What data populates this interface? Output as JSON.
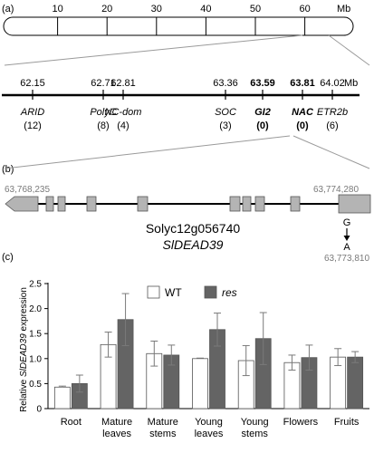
{
  "panels": {
    "a": {
      "label": "(a)"
    },
    "b": {
      "label": "(b)"
    },
    "c": {
      "label": "(c)"
    }
  },
  "chromosome": {
    "ticks": [
      "10",
      "20",
      "30",
      "40",
      "50",
      "60"
    ],
    "unit": "Mb"
  },
  "markers": {
    "unit": "Mb",
    "items": [
      {
        "pos": "62.15",
        "gene": "ARID",
        "count": "(12)",
        "bold": false
      },
      {
        "pos": "62.71",
        "gene": "PolyC",
        "count": "(8)",
        "bold": false
      },
      {
        "pos": "62.81",
        "gene": "NC-dom",
        "count": "(4)",
        "bold": false
      },
      {
        "pos": "63.36",
        "gene": "SOC",
        "count": "(3)",
        "bold": false
      },
      {
        "pos": "63.59",
        "gene": "GI2",
        "count": "(0)",
        "bold": true
      },
      {
        "pos": "63.81",
        "gene": "NAC",
        "count": "(0)",
        "bold": true
      },
      {
        "pos": "64.02",
        "gene": "ETR2b",
        "count": "(6)",
        "bold": false
      }
    ]
  },
  "gene_model": {
    "start": "63,768,235",
    "end": "63,774,280",
    "gene_id": "Solyc12g056740",
    "gene_name": "SlDEAD39",
    "snp_ref": "G",
    "snp_alt": "A",
    "snp_pos": "63,773,810"
  },
  "colors": {
    "wt": "#ffffff",
    "res": "#646464",
    "exon": "#b4b4b4",
    "line": "#000000",
    "muted": "#7a7a7a",
    "guide": "#9a9a9a",
    "error": "#7a7a7a"
  },
  "chart_data": {
    "type": "bar",
    "ylabel_prefix": "Relative ",
    "ylabel_gene": "SlDEAD39",
    "ylabel_suffix": " expression",
    "ylim": [
      0,
      2.5
    ],
    "yticks": [
      "0",
      "0.5",
      "1.0",
      "1.5",
      "2.0",
      "2.5"
    ],
    "categories": [
      [
        "Root"
      ],
      [
        "Mature",
        "leaves"
      ],
      [
        "Mature",
        "stems"
      ],
      [
        "Young",
        "leaves"
      ],
      [
        "Young",
        "stems"
      ],
      [
        "Flowers"
      ],
      [
        "Fruits"
      ]
    ],
    "legend_placement": "top-center",
    "series": [
      {
        "name": "WT",
        "values": [
          0.43,
          1.28,
          1.1,
          1.0,
          0.96,
          0.92,
          1.03
        ],
        "errors": [
          0.02,
          0.25,
          0.25,
          0.01,
          0.3,
          0.15,
          0.17
        ]
      },
      {
        "name": "res",
        "values": [
          0.5,
          1.78,
          1.07,
          1.58,
          1.4,
          1.02,
          1.03
        ],
        "errors": [
          0.17,
          0.52,
          0.2,
          0.33,
          0.52,
          0.25,
          0.11
        ]
      }
    ]
  }
}
